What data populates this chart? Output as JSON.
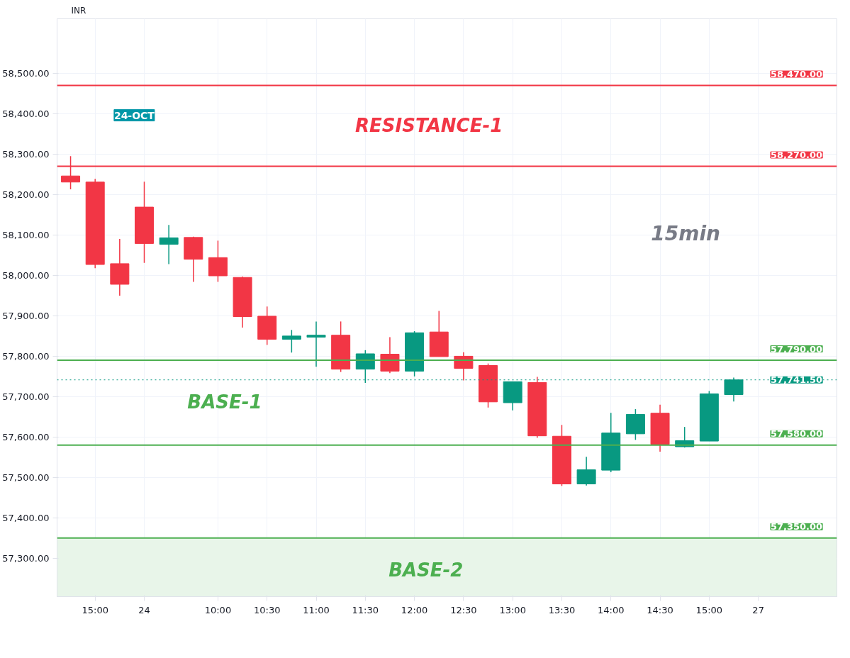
{
  "chart_data": {
    "type": "candlestick",
    "categories": [
      null,
      "15:00",
      null,
      "24",
      null,
      null,
      "10:00",
      null,
      "10:30",
      null,
      "11:00",
      null,
      "11:30",
      null,
      "12:00",
      null,
      "12:30",
      null,
      "13:00",
      null,
      "13:30",
      null,
      "14:00",
      null,
      "14:30",
      null,
      "15:00",
      null,
      "27"
    ],
    "ohlc": [
      [
        58246,
        58295,
        58213,
        58231
      ],
      [
        58231,
        58239,
        58018,
        58027
      ],
      [
        58029,
        58090,
        57950,
        57978
      ],
      [
        58169,
        58232,
        58031,
        58079
      ],
      [
        58077,
        58125,
        58028,
        58093
      ],
      [
        58094,
        58096,
        57984,
        58040
      ],
      [
        58044,
        58086,
        57984,
        57999
      ],
      [
        57995,
        57997,
        57871,
        57898
      ],
      [
        57899,
        57923,
        57828,
        57842
      ],
      [
        57842,
        57865,
        57809,
        57850
      ],
      [
        57847,
        57886,
        57774,
        57852
      ],
      [
        57852,
        57886,
        57761,
        57768
      ],
      [
        57768,
        57815,
        57734,
        57806
      ],
      [
        57805,
        57847,
        57758,
        57763
      ],
      [
        57763,
        57862,
        57750,
        57858
      ],
      [
        57860,
        57912,
        57799,
        57799
      ],
      [
        57800,
        57810,
        57740,
        57770
      ],
      [
        57777,
        57782,
        57673,
        57687
      ],
      [
        57685,
        57737,
        57666,
        57737
      ],
      [
        57735,
        57749,
        57598,
        57603
      ],
      [
        57602,
        57630,
        57479,
        57484
      ],
      [
        57484,
        57551,
        57480,
        57519
      ],
      [
        57518,
        57660,
        57513,
        57610
      ],
      [
        57608,
        57669,
        57593,
        57656
      ],
      [
        57659,
        57680,
        57564,
        57582
      ],
      [
        57576,
        57625,
        57574,
        57591
      ],
      [
        57590,
        57714,
        57590,
        57707
      ],
      [
        57705,
        57747,
        57688,
        57741.5
      ],
      null
    ],
    "colors": [
      "#f23645",
      "#f23645",
      "#f23645",
      "#f23645",
      "#089981",
      "#f23645",
      "#f23645",
      "#f23645",
      "#f23645",
      "#089981",
      "#089981",
      "#f23645",
      "#089981",
      "#f23645",
      "#089981",
      "#f23645",
      "#f23645",
      "#f23645",
      "#089981",
      "#f23645",
      "#f23645",
      "#089981",
      "#089981",
      "#089981",
      "#f23645",
      "#089981",
      "#089981",
      "#089981",
      null
    ],
    "ylim": [
      57205,
      58635
    ],
    "yticks": [
      {
        "value": 57300,
        "label": "57,300.00"
      },
      {
        "value": 57400,
        "label": "57,400.00"
      },
      {
        "value": 57500,
        "label": "57,500.00"
      },
      {
        "value": 57600,
        "label": "57,600.00"
      },
      {
        "value": 57700,
        "label": "57,700.00"
      },
      {
        "value": 57800,
        "label": "57,800.00"
      },
      {
        "value": 57900,
        "label": "57,900.00"
      },
      {
        "value": 58000,
        "label": "58,000.00"
      },
      {
        "value": 58100,
        "label": "58,100.00"
      },
      {
        "value": 58200,
        "label": "58,200.00"
      },
      {
        "value": 58300,
        "label": "58,300.00"
      },
      {
        "value": 58400,
        "label": "58,400.00"
      },
      {
        "value": 58500,
        "label": "58,500.00"
      }
    ],
    "ylabel": "INR",
    "grid": true,
    "ref_lines": [
      {
        "axis": "y",
        "value": 58470,
        "label": "58,470.00",
        "color": "#f23645"
      },
      {
        "axis": "y",
        "value": 58270,
        "label": "58,270.00",
        "color": "#f23645"
      },
      {
        "axis": "y",
        "value": 57790,
        "label": "57,790.00",
        "color": "#4caf50"
      },
      {
        "axis": "y",
        "value": 57580,
        "label": "57,580.00",
        "color": "#4caf50"
      },
      {
        "axis": "y",
        "value": 57350,
        "label": "57,350.00",
        "color": "#4caf50"
      },
      {
        "axis": "y",
        "value": 57741.5,
        "label": "57,741.50",
        "color": "#089981",
        "line_style": "dotted"
      }
    ],
    "bands": [
      {
        "axis": "y",
        "from": 57205,
        "to": 57350,
        "color": "#e8f5e9"
      }
    ],
    "annotations": [
      "24-OCT",
      "RESISTANCE-1",
      "BASE-1",
      "BASE-2",
      "15min"
    ]
  }
}
